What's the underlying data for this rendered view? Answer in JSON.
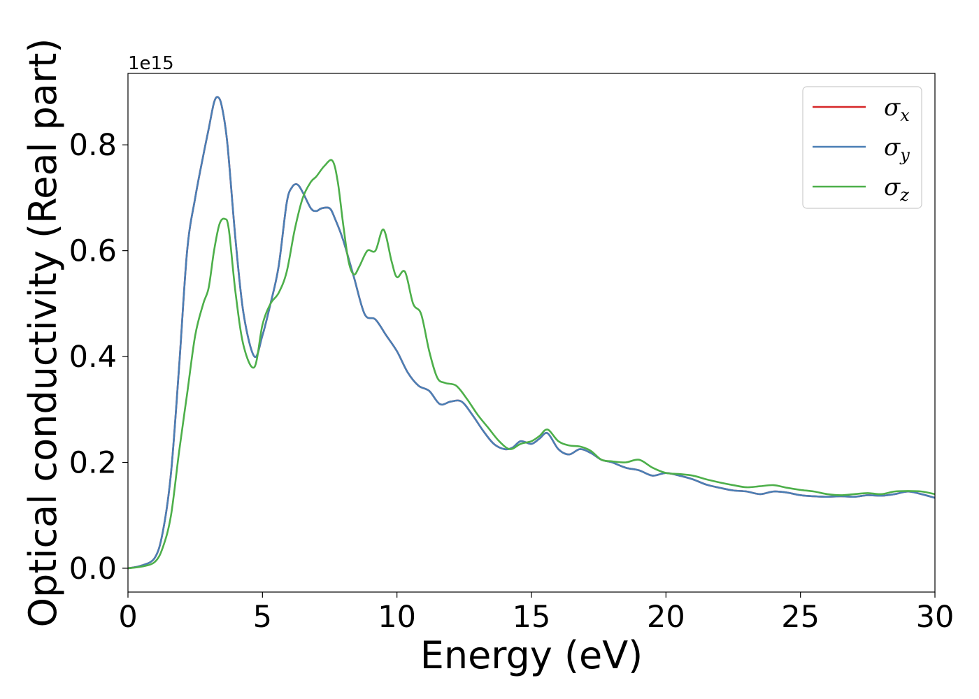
{
  "chart_data": {
    "type": "line",
    "xlabel": "Energy (eV)",
    "ylabel": "Optical conductivity (Real part)",
    "y_multiplier_label": "1e15",
    "xlim": [
      0,
      30
    ],
    "ylim": [
      -0.045,
      0.935
    ],
    "x_ticks": [
      0,
      5,
      10,
      15,
      20,
      25,
      30
    ],
    "x_tick_labels": [
      "0",
      "5",
      "10",
      "15",
      "20",
      "25",
      "30"
    ],
    "y_ticks": [
      0.0,
      0.2,
      0.4,
      0.6,
      0.8
    ],
    "y_tick_labels": [
      "0.0",
      "0.2",
      "0.4",
      "0.6",
      "0.8"
    ],
    "grid": false,
    "legend_position": "top-right",
    "series": [
      {
        "name": "σx",
        "legend_symbol": "σ",
        "legend_sub": "x",
        "color": "#d62728",
        "x": [
          0,
          0.5,
          1.0,
          1.3,
          1.6,
          1.9,
          2.2,
          2.5,
          2.8,
          3.0,
          3.2,
          3.35,
          3.5,
          3.7,
          4.0,
          4.3,
          4.7,
          5.0,
          5.3,
          5.6,
          5.9,
          6.1,
          6.3,
          6.5,
          6.8,
          7.0,
          7.2,
          7.5,
          7.7,
          8.0,
          8.4,
          8.8,
          9.2,
          9.6,
          10.0,
          10.4,
          10.8,
          11.2,
          11.6,
          12.0,
          12.4,
          12.8,
          13.2,
          13.6,
          14.0,
          14.3,
          14.6,
          15.0,
          15.3,
          15.6,
          16.0,
          16.4,
          16.8,
          17.2,
          17.6,
          18.0,
          18.5,
          19.0,
          19.5,
          20.0,
          20.5,
          21.0,
          21.5,
          22.0,
          22.5,
          23.0,
          23.5,
          24.0,
          24.5,
          25.0,
          25.5,
          26.0,
          26.5,
          27.0,
          27.5,
          28.0,
          28.5,
          29.0,
          29.5,
          30.0
        ],
        "y": [
          0.0,
          0.005,
          0.02,
          0.07,
          0.18,
          0.38,
          0.6,
          0.7,
          0.78,
          0.83,
          0.88,
          0.89,
          0.87,
          0.8,
          0.62,
          0.48,
          0.4,
          0.44,
          0.5,
          0.57,
          0.69,
          0.72,
          0.725,
          0.71,
          0.68,
          0.675,
          0.68,
          0.68,
          0.66,
          0.62,
          0.55,
          0.48,
          0.47,
          0.44,
          0.41,
          0.37,
          0.345,
          0.335,
          0.31,
          0.315,
          0.315,
          0.29,
          0.26,
          0.235,
          0.225,
          0.228,
          0.24,
          0.235,
          0.245,
          0.255,
          0.225,
          0.215,
          0.225,
          0.218,
          0.205,
          0.2,
          0.19,
          0.185,
          0.175,
          0.18,
          0.175,
          0.168,
          0.158,
          0.152,
          0.147,
          0.145,
          0.14,
          0.145,
          0.143,
          0.138,
          0.136,
          0.135,
          0.136,
          0.135,
          0.138,
          0.137,
          0.14,
          0.145,
          0.14,
          0.133
        ]
      },
      {
        "name": "σy",
        "legend_symbol": "σ",
        "legend_sub": "y",
        "color": "#4a7fb5",
        "x": [
          0,
          0.5,
          1.0,
          1.3,
          1.6,
          1.9,
          2.2,
          2.5,
          2.8,
          3.0,
          3.2,
          3.35,
          3.5,
          3.7,
          4.0,
          4.3,
          4.7,
          5.0,
          5.3,
          5.6,
          5.9,
          6.1,
          6.3,
          6.5,
          6.8,
          7.0,
          7.2,
          7.5,
          7.7,
          8.0,
          8.4,
          8.8,
          9.2,
          9.6,
          10.0,
          10.4,
          10.8,
          11.2,
          11.6,
          12.0,
          12.4,
          12.8,
          13.2,
          13.6,
          14.0,
          14.3,
          14.6,
          15.0,
          15.3,
          15.6,
          16.0,
          16.4,
          16.8,
          17.2,
          17.6,
          18.0,
          18.5,
          19.0,
          19.5,
          20.0,
          20.5,
          21.0,
          21.5,
          22.0,
          22.5,
          23.0,
          23.5,
          24.0,
          24.5,
          25.0,
          25.5,
          26.0,
          26.5,
          27.0,
          27.5,
          28.0,
          28.5,
          29.0,
          29.5,
          30.0
        ],
        "y": [
          0.0,
          0.005,
          0.02,
          0.07,
          0.18,
          0.38,
          0.6,
          0.7,
          0.78,
          0.83,
          0.88,
          0.89,
          0.87,
          0.8,
          0.62,
          0.48,
          0.4,
          0.44,
          0.5,
          0.57,
          0.69,
          0.72,
          0.725,
          0.71,
          0.68,
          0.675,
          0.68,
          0.68,
          0.66,
          0.62,
          0.55,
          0.48,
          0.47,
          0.44,
          0.41,
          0.37,
          0.345,
          0.335,
          0.31,
          0.315,
          0.315,
          0.29,
          0.26,
          0.235,
          0.225,
          0.228,
          0.24,
          0.235,
          0.245,
          0.255,
          0.225,
          0.215,
          0.225,
          0.218,
          0.205,
          0.2,
          0.19,
          0.185,
          0.175,
          0.18,
          0.175,
          0.168,
          0.158,
          0.152,
          0.147,
          0.145,
          0.14,
          0.145,
          0.143,
          0.138,
          0.136,
          0.135,
          0.136,
          0.135,
          0.138,
          0.137,
          0.14,
          0.145,
          0.14,
          0.133
        ]
      },
      {
        "name": "σz",
        "legend_symbol": "σ",
        "legend_sub": "z",
        "color": "#4daf4a",
        "x": [
          0,
          0.5,
          1.0,
          1.3,
          1.6,
          1.9,
          2.2,
          2.5,
          2.8,
          3.0,
          3.2,
          3.4,
          3.6,
          3.75,
          4.0,
          4.3,
          4.7,
          5.0,
          5.3,
          5.6,
          5.9,
          6.2,
          6.5,
          6.8,
          7.0,
          7.3,
          7.6,
          7.8,
          8.0,
          8.2,
          8.4,
          8.6,
          8.9,
          9.2,
          9.5,
          9.8,
          10.0,
          10.3,
          10.6,
          10.9,
          11.2,
          11.5,
          11.8,
          12.2,
          12.6,
          13.0,
          13.4,
          13.8,
          14.2,
          14.6,
          15.0,
          15.3,
          15.6,
          16.0,
          16.4,
          16.8,
          17.2,
          17.6,
          18.0,
          18.5,
          19.0,
          19.5,
          20.0,
          20.5,
          21.0,
          21.5,
          22.0,
          22.5,
          23.0,
          23.5,
          24.0,
          24.5,
          25.0,
          25.5,
          26.0,
          26.5,
          27.0,
          27.5,
          28.0,
          28.5,
          29.0,
          29.5,
          30.0
        ],
        "y": [
          0.0,
          0.003,
          0.012,
          0.04,
          0.1,
          0.22,
          0.33,
          0.44,
          0.5,
          0.53,
          0.6,
          0.65,
          0.66,
          0.64,
          0.52,
          0.42,
          0.38,
          0.46,
          0.5,
          0.52,
          0.56,
          0.64,
          0.7,
          0.73,
          0.74,
          0.76,
          0.77,
          0.73,
          0.65,
          0.58,
          0.555,
          0.57,
          0.6,
          0.6,
          0.64,
          0.58,
          0.55,
          0.56,
          0.5,
          0.48,
          0.41,
          0.36,
          0.35,
          0.345,
          0.32,
          0.29,
          0.265,
          0.24,
          0.225,
          0.235,
          0.24,
          0.25,
          0.262,
          0.24,
          0.232,
          0.23,
          0.222,
          0.205,
          0.202,
          0.2,
          0.205,
          0.19,
          0.18,
          0.178,
          0.175,
          0.168,
          0.162,
          0.157,
          0.153,
          0.155,
          0.157,
          0.152,
          0.148,
          0.145,
          0.14,
          0.138,
          0.14,
          0.142,
          0.14,
          0.145,
          0.146,
          0.145,
          0.14
        ]
      }
    ]
  }
}
